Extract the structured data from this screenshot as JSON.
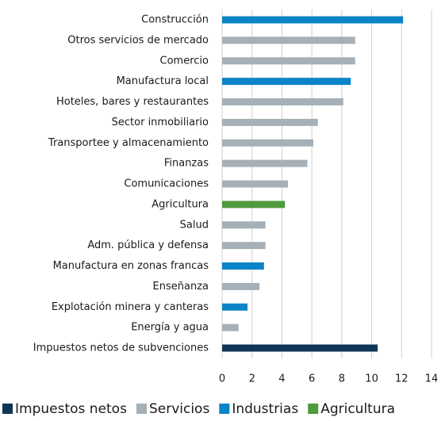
{
  "chart_data": {
    "type": "bar",
    "orientation": "horizontal",
    "categories": [
      "Construcción",
      "Otros servicios de mercado",
      "Comercio",
      "Manufactura local",
      "Hoteles, bares y restaurantes",
      "Sector inmobiliario",
      "Transportee y almacenamiento",
      "Finanzas",
      "Comunicaciones",
      "Agricultura",
      "Salud",
      "Adm. pública y defensa",
      "Manufactura en zonas francas",
      "Enseñanza",
      "Explotación minera y canteras",
      "Energía y agua",
      "Impuestos netos de subvenciones"
    ],
    "values": [
      12.1,
      8.9,
      8.9,
      8.6,
      8.1,
      6.4,
      6.1,
      5.7,
      4.4,
      4.2,
      2.9,
      2.9,
      2.8,
      2.5,
      1.7,
      1.1,
      10.4
    ],
    "colors": [
      "#0a84c6",
      "#a5b0b7",
      "#a5b0b7",
      "#0a84c6",
      "#a5b0b7",
      "#a5b0b7",
      "#a5b0b7",
      "#a5b0b7",
      "#a5b0b7",
      "#4e9a3c",
      "#a5b0b7",
      "#a5b0b7",
      "#0a84c6",
      "#a5b0b7",
      "#0a84c6",
      "#a5b0b7",
      "#0f3556"
    ],
    "legend": [
      {
        "name": "Impuestos netos",
        "color": "#0f3556"
      },
      {
        "name": "Servicios",
        "color": "#a5b0b7"
      },
      {
        "name": "Industrias",
        "color": "#0a84c6"
      },
      {
        "name": "Agricultura",
        "color": "#4e9a3c"
      }
    ],
    "xlim": [
      0,
      14
    ],
    "xticks": [
      0,
      2,
      4,
      6,
      8,
      10,
      12,
      14
    ],
    "grid": true
  }
}
